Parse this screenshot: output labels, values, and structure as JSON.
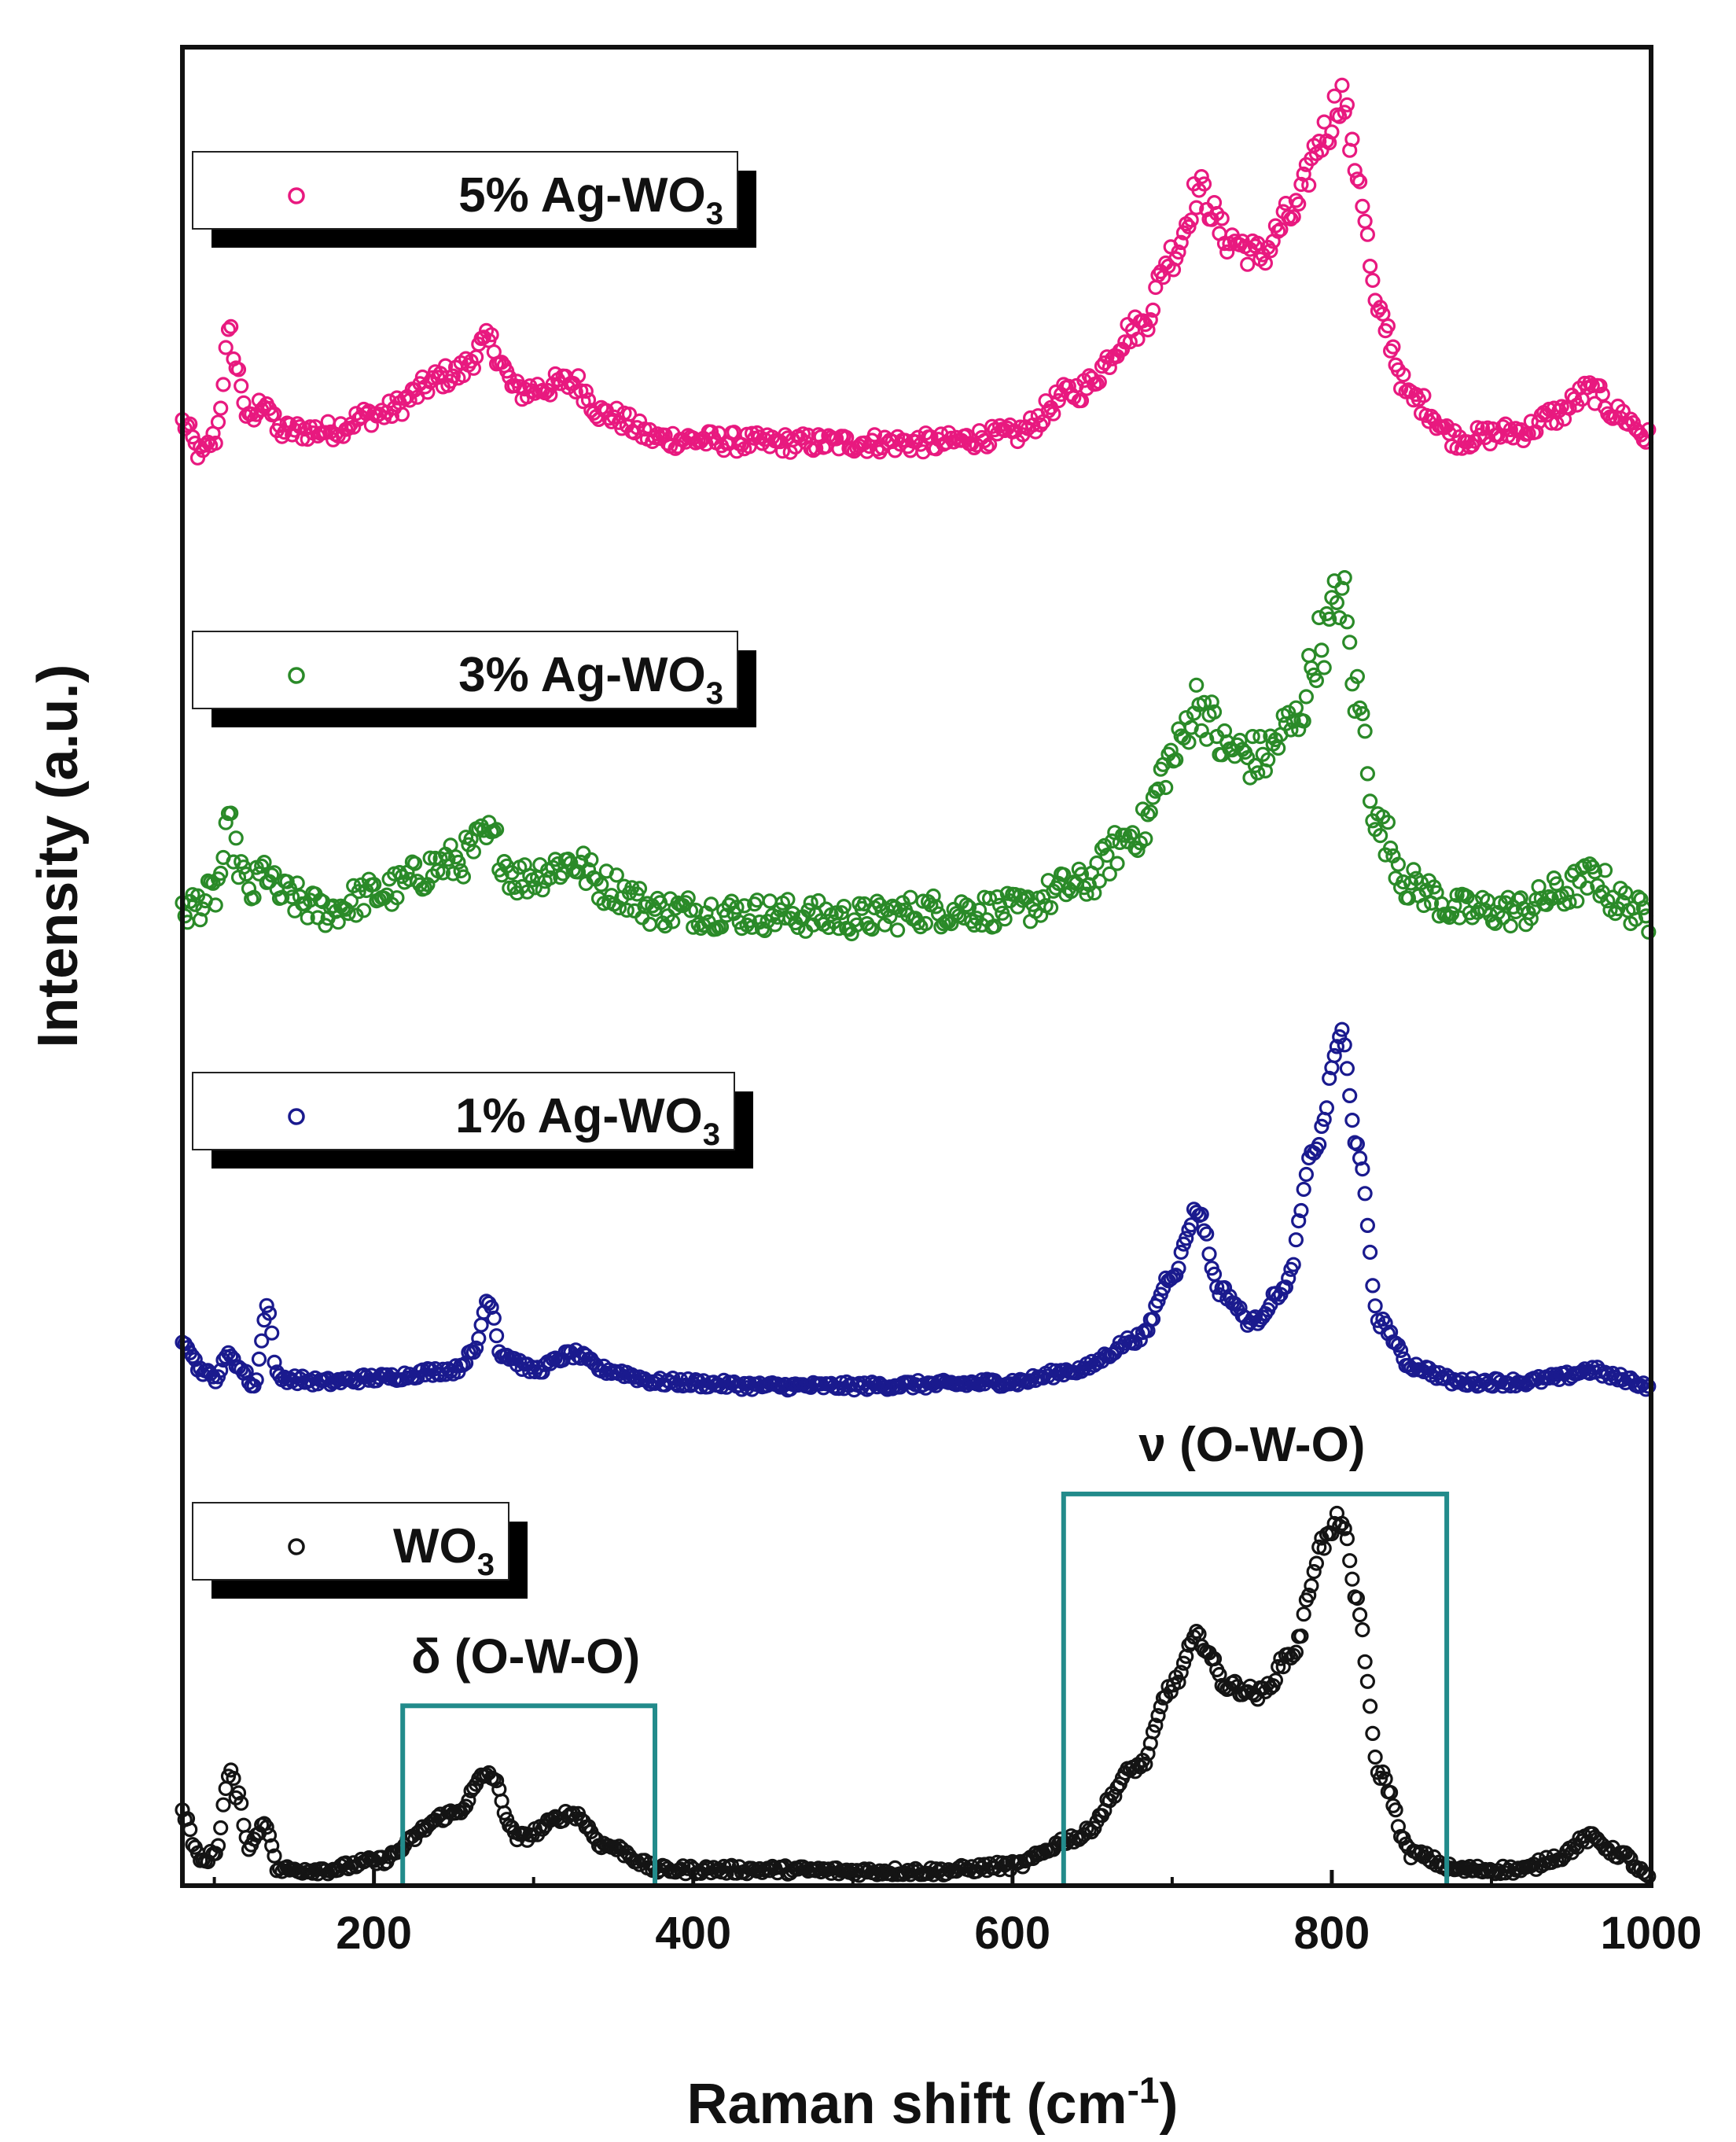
{
  "chart_data": {
    "type": "scatter",
    "title": "",
    "xlabel": "Raman shift (cm",
    "xlabel_sup": "-1",
    "xlabel_end": ")",
    "ylabel": "Intensity (a.u.)",
    "xlim": [
      80,
      1000
    ],
    "ylim": [
      0,
      23
    ],
    "y_ticks_shown": false,
    "x_ticks": [
      200,
      400,
      600,
      800,
      1000
    ],
    "x_tick_labels": [
      "200",
      "400",
      "600",
      "800",
      "1000"
    ],
    "series": [
      {
        "name": "5% Ag-WO3",
        "label_main": "5% Ag-WO",
        "label_sub": "3",
        "color": "#e8197f",
        "offset": 17.9,
        "noise": 0.12,
        "points": [
          [
            80,
            0.4
          ],
          [
            92,
            0.0
          ],
          [
            100,
            0.2
          ],
          [
            110,
            1.5
          ],
          [
            115,
            1.0
          ],
          [
            122,
            0.4
          ],
          [
            132,
            0.7
          ],
          [
            140,
            0.3
          ],
          [
            170,
            0.3
          ],
          [
            200,
            0.5
          ],
          [
            250,
            1.0
          ],
          [
            272,
            1.4
          ],
          [
            290,
            0.8
          ],
          [
            325,
            0.9
          ],
          [
            345,
            0.5
          ],
          [
            380,
            0.2
          ],
          [
            450,
            0.15
          ],
          [
            500,
            0.15
          ],
          [
            550,
            0.15
          ],
          [
            600,
            0.25
          ],
          [
            640,
            0.8
          ],
          [
            680,
            1.6
          ],
          [
            700,
            2.5
          ],
          [
            717,
            3.3
          ],
          [
            735,
            2.7
          ],
          [
            755,
            2.5
          ],
          [
            775,
            3.0
          ],
          [
            795,
            4.0
          ],
          [
            806,
            4.5
          ],
          [
            815,
            3.6
          ],
          [
            830,
            1.7
          ],
          [
            850,
            0.7
          ],
          [
            880,
            0.2
          ],
          [
            920,
            0.3
          ],
          [
            940,
            0.5
          ],
          [
            962,
            0.8
          ],
          [
            980,
            0.5
          ],
          [
            1000,
            0.2
          ]
        ]
      },
      {
        "name": "3% Ag-WO3",
        "label_main": "3% Ag-WO",
        "label_sub": "3",
        "color": "#2a8a28",
        "offset": 11.9,
        "noise": 0.2,
        "points": [
          [
            80,
            0.3
          ],
          [
            92,
            0.4
          ],
          [
            100,
            0.5
          ],
          [
            110,
            1.3
          ],
          [
            115,
            0.9
          ],
          [
            122,
            0.5
          ],
          [
            132,
            0.8
          ],
          [
            140,
            0.5
          ],
          [
            170,
            0.3
          ],
          [
            200,
            0.5
          ],
          [
            250,
            0.9
          ],
          [
            272,
            1.2
          ],
          [
            290,
            0.7
          ],
          [
            325,
            0.9
          ],
          [
            345,
            0.6
          ],
          [
            380,
            0.3
          ],
          [
            450,
            0.25
          ],
          [
            500,
            0.2
          ],
          [
            550,
            0.3
          ],
          [
            600,
            0.3
          ],
          [
            640,
            0.6
          ],
          [
            680,
            1.3
          ],
          [
            700,
            2.2
          ],
          [
            716,
            2.9
          ],
          [
            735,
            2.3
          ],
          [
            755,
            2.2
          ],
          [
            775,
            2.6
          ],
          [
            795,
            3.7
          ],
          [
            806,
            4.3
          ],
          [
            815,
            3.0
          ],
          [
            830,
            1.3
          ],
          [
            850,
            0.6
          ],
          [
            880,
            0.3
          ],
          [
            920,
            0.3
          ],
          [
            940,
            0.5
          ],
          [
            965,
            0.7
          ],
          [
            980,
            0.4
          ],
          [
            1000,
            0.2
          ]
        ]
      },
      {
        "name": "1% Ag-WO3",
        "label_main": "1% Ag-WO",
        "label_sub": "3",
        "color": "#1a1a8e",
        "offset": 6.15,
        "noise": 0.05,
        "points": [
          [
            80,
            0.7
          ],
          [
            92,
            0.3
          ],
          [
            100,
            0.2
          ],
          [
            110,
            0.5
          ],
          [
            117,
            0.3
          ],
          [
            125,
            0.1
          ],
          [
            133,
            1.1
          ],
          [
            140,
            0.2
          ],
          [
            170,
            0.15
          ],
          [
            200,
            0.2
          ],
          [
            250,
            0.3
          ],
          [
            262,
            0.5
          ],
          [
            272,
            1.2
          ],
          [
            280,
            0.5
          ],
          [
            300,
            0.3
          ],
          [
            325,
            0.5
          ],
          [
            345,
            0.3
          ],
          [
            380,
            0.15
          ],
          [
            450,
            0.1
          ],
          [
            500,
            0.1
          ],
          [
            550,
            0.12
          ],
          [
            600,
            0.15
          ],
          [
            640,
            0.3
          ],
          [
            680,
            0.7
          ],
          [
            700,
            1.5
          ],
          [
            716,
            2.3
          ],
          [
            730,
            1.3
          ],
          [
            750,
            0.9
          ],
          [
            770,
            1.3
          ],
          [
            790,
            3.1
          ],
          [
            806,
            4.5
          ],
          [
            815,
            3.2
          ],
          [
            830,
            0.9
          ],
          [
            850,
            0.35
          ],
          [
            880,
            0.15
          ],
          [
            920,
            0.15
          ],
          [
            940,
            0.2
          ],
          [
            962,
            0.3
          ],
          [
            980,
            0.2
          ],
          [
            1000,
            0.1
          ]
        ]
      },
      {
        "name": "WO3",
        "label_main": "WO",
        "label_sub": "3",
        "color": "#141414",
        "offset": 0.0,
        "noise": 0.05,
        "points": [
          [
            80,
            0.9
          ],
          [
            92,
            0.3
          ],
          [
            100,
            0.4
          ],
          [
            110,
            1.4
          ],
          [
            115,
            1.1
          ],
          [
            122,
            0.5
          ],
          [
            132,
            0.8
          ],
          [
            140,
            0.2
          ],
          [
            170,
            0.2
          ],
          [
            200,
            0.3
          ],
          [
            250,
            0.9
          ],
          [
            272,
            1.4
          ],
          [
            290,
            0.6
          ],
          [
            325,
            0.9
          ],
          [
            345,
            0.5
          ],
          [
            380,
            0.2
          ],
          [
            450,
            0.2
          ],
          [
            500,
            0.18
          ],
          [
            550,
            0.18
          ],
          [
            600,
            0.25
          ],
          [
            640,
            0.6
          ],
          [
            680,
            1.5
          ],
          [
            700,
            2.5
          ],
          [
            716,
            3.1
          ],
          [
            735,
            2.5
          ],
          [
            755,
            2.4
          ],
          [
            775,
            2.9
          ],
          [
            795,
            4.3
          ],
          [
            806,
            4.6
          ],
          [
            815,
            3.6
          ],
          [
            830,
            1.4
          ],
          [
            850,
            0.4
          ],
          [
            880,
            0.2
          ],
          [
            920,
            0.2
          ],
          [
            940,
            0.35
          ],
          [
            962,
            0.6
          ],
          [
            980,
            0.4
          ],
          [
            1000,
            0.1
          ]
        ]
      }
    ],
    "annotations": [
      {
        "label": "δ (O-W-O)",
        "xmin": 218,
        "xmax": 376,
        "ymin": 0.0,
        "ymax": 2.25
      },
      {
        "label": "ν (O-W-O)",
        "xmin": 632,
        "xmax": 872,
        "ymin": 0.0,
        "ymax": 4.9
      }
    ],
    "box_color": "#228b8b"
  }
}
